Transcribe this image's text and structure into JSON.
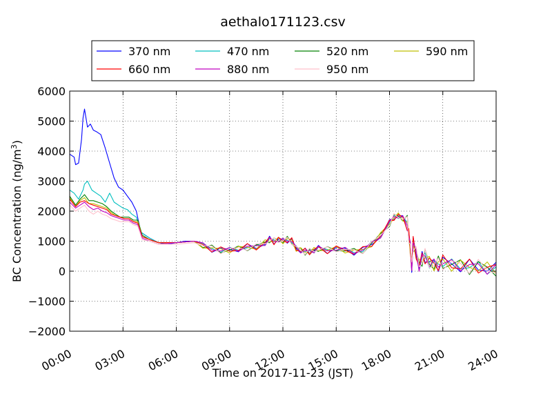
{
  "chart_data": {
    "type": "line",
    "title": "aethalo171123.csv",
    "xlabel": "Time on 2017-11-23 (JST)",
    "ylabel_prefix": "BC Concentration (ng/m",
    "ylabel_sup": "3",
    "ylabel_suffix": ")",
    "xlim": [
      "00:00",
      "24:00"
    ],
    "ylim": [
      -2000,
      6000
    ],
    "x_ticks": [
      "00:00",
      "03:00",
      "06:00",
      "09:00",
      "12:00",
      "15:00",
      "18:00",
      "21:00",
      "24:00"
    ],
    "y_ticks": [
      "−2000",
      "−1000",
      "0",
      "1000",
      "2000",
      "3000",
      "4000",
      "5000",
      "6000"
    ],
    "y_tick_values": [
      -2000,
      -1000,
      0,
      1000,
      2000,
      3000,
      4000,
      5000,
      6000
    ],
    "grid": "dotted",
    "legend_position": "top",
    "legend_columns": 4,
    "series": [
      {
        "name": "370 nm",
        "color": "#0000ff",
        "x": [
          "00:00",
          "00:15",
          "00:20",
          "00:30",
          "00:40",
          "00:45",
          "00:50",
          "01:00",
          "01:10",
          "01:20",
          "01:30",
          "01:45",
          "02:00",
          "02:15",
          "02:30",
          "02:45",
          "03:00",
          "03:15",
          "03:30",
          "03:45",
          "04:00",
          "04:30",
          "05:00",
          "05:30",
          "06:00",
          "06:30",
          "07:00"
        ],
        "y": [
          3900,
          3800,
          3550,
          3600,
          4400,
          5100,
          5400,
          4800,
          4900,
          4700,
          4650,
          4550,
          4100,
          3600,
          3100,
          2800,
          2700,
          2500,
          2300,
          2000,
          1300,
          1100,
          950,
          900,
          950,
          1000,
          1000
        ]
      },
      {
        "name": "470 nm",
        "color": "#00bfbf",
        "x": [
          "00:00",
          "00:15",
          "00:30",
          "00:45",
          "00:50",
          "01:00",
          "01:15",
          "01:30",
          "01:45",
          "02:00",
          "02:15",
          "02:30",
          "02:45",
          "03:00",
          "03:15",
          "03:30",
          "03:45",
          "04:00",
          "04:30",
          "05:00",
          "06:00",
          "07:00"
        ],
        "y": [
          2700,
          2600,
          2400,
          2700,
          2900,
          3000,
          2700,
          2600,
          2500,
          2300,
          2600,
          2300,
          2200,
          2100,
          2050,
          1900,
          1800,
          1300,
          1100,
          950,
          950,
          1000
        ]
      },
      {
        "name": "520 nm",
        "color": "#008000",
        "x": [
          "00:00",
          "00:20",
          "00:35",
          "00:50",
          "01:05",
          "01:20",
          "01:35",
          "01:50",
          "02:05",
          "02:20",
          "02:35",
          "02:50",
          "03:05",
          "03:20",
          "03:35",
          "03:50",
          "04:05",
          "04:30",
          "05:00",
          "06:00",
          "07:00"
        ],
        "y": [
          2500,
          2200,
          2400,
          2550,
          2350,
          2350,
          2300,
          2250,
          2150,
          2000,
          1900,
          1800,
          1800,
          1800,
          1700,
          1700,
          1200,
          1050,
          950,
          950,
          1000
        ]
      },
      {
        "name": "590 nm",
        "color": "#bfbf00",
        "x": [
          "00:00",
          "00:20",
          "00:35",
          "00:50",
          "01:05",
          "01:20",
          "01:35",
          "01:50",
          "02:05",
          "02:20",
          "02:35",
          "02:50",
          "03:05",
          "03:20",
          "03:35",
          "03:50",
          "04:05",
          "04:30",
          "05:00",
          "06:00",
          "07:00"
        ],
        "y": [
          2450,
          2150,
          2350,
          2450,
          2250,
          2250,
          2200,
          2150,
          2100,
          1950,
          1850,
          1800,
          1750,
          1750,
          1650,
          1650,
          1150,
          1050,
          950,
          950,
          1000
        ]
      },
      {
        "name": "660 nm",
        "color": "#ff0000",
        "x": [
          "00:00",
          "00:20",
          "00:35",
          "00:50",
          "01:05",
          "01:20",
          "01:35",
          "01:50",
          "02:05",
          "02:20",
          "02:35",
          "02:50",
          "03:05",
          "03:20",
          "03:35",
          "03:50",
          "04:05",
          "04:30",
          "05:00",
          "06:00",
          "07:00"
        ],
        "y": [
          2400,
          2150,
          2300,
          2350,
          2250,
          2200,
          2150,
          2100,
          2050,
          1900,
          1850,
          1800,
          1750,
          1750,
          1650,
          1600,
          1150,
          1050,
          950,
          950,
          1000
        ]
      },
      {
        "name": "880 nm",
        "color": "#bf00bf",
        "x": [
          "00:00",
          "00:20",
          "00:35",
          "00:50",
          "01:05",
          "01:20",
          "01:35",
          "01:50",
          "02:05",
          "02:20",
          "02:35",
          "02:50",
          "03:05",
          "03:20",
          "03:35",
          "03:50",
          "04:05",
          "04:30",
          "05:00",
          "06:00",
          "07:00"
        ],
        "y": [
          2300,
          2100,
          2200,
          2300,
          2150,
          2050,
          2100,
          2000,
          1950,
          1850,
          1800,
          1750,
          1700,
          1700,
          1600,
          1550,
          1100,
          1000,
          900,
          950,
          1000
        ]
      },
      {
        "name": "950 nm",
        "color": "#ffc0cb",
        "x": [
          "00:00",
          "00:20",
          "00:35",
          "00:50",
          "01:05",
          "01:20",
          "01:35",
          "01:50",
          "02:05",
          "02:20",
          "02:35",
          "02:50",
          "03:05",
          "03:20",
          "03:35",
          "03:50",
          "04:05",
          "04:30",
          "05:00",
          "06:00",
          "07:00"
        ],
        "y": [
          2200,
          2000,
          2100,
          2200,
          2000,
          1900,
          2000,
          1900,
          1850,
          1750,
          1700,
          1650,
          1650,
          1650,
          1550,
          1500,
          1050,
          1000,
          900,
          900,
          950
        ]
      }
    ],
    "common_tail": {
      "x": [
        "07:00",
        "07:30",
        "08:00",
        "08:30",
        "09:00",
        "09:30",
        "10:00",
        "10:30",
        "11:00",
        "11:15",
        "11:30",
        "11:45",
        "12:00",
        "12:15",
        "12:30",
        "12:45",
        "13:00",
        "13:15",
        "13:30",
        "13:45",
        "14:00",
        "14:30",
        "15:00",
        "15:30",
        "16:00",
        "16:30",
        "17:00",
        "17:30",
        "18:00",
        "18:15",
        "18:30",
        "18:45",
        "19:00",
        "19:05",
        "19:10",
        "19:15",
        "19:20",
        "19:30",
        "19:40",
        "19:50",
        "20:00",
        "20:15",
        "20:30",
        "20:45",
        "21:00",
        "21:30",
        "22:00",
        "22:30",
        "23:00",
        "23:30",
        "24:00"
      ],
      "y": [
        950,
        850,
        750,
        700,
        700,
        750,
        800,
        800,
        950,
        1050,
        1000,
        1050,
        1000,
        1050,
        1000,
        750,
        700,
        650,
        650,
        700,
        750,
        700,
        750,
        700,
        650,
        700,
        900,
        1200,
        1600,
        1800,
        1850,
        1750,
        1600,
        1200,
        800,
        200,
        900,
        600,
        200,
        400,
        500,
        300,
        200,
        250,
        300,
        200,
        200,
        150,
        150,
        100,
        50
      ]
    }
  }
}
